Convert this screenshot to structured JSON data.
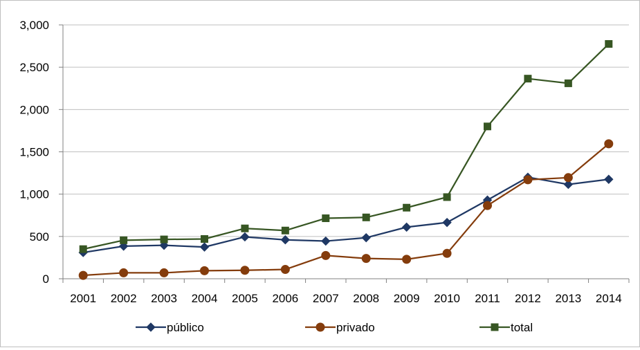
{
  "chart_data": {
    "type": "line",
    "title": "",
    "xlabel": "",
    "ylabel": "",
    "categories": [
      "2001",
      "2002",
      "2003",
      "2004",
      "2005",
      "2006",
      "2007",
      "2008",
      "2009",
      "2010",
      "2011",
      "2012",
      "2013",
      "2014"
    ],
    "ylim": [
      0,
      3000
    ],
    "yticks": [
      0,
      500,
      1000,
      1500,
      2000,
      2500,
      3000
    ],
    "ytick_labels": [
      "0",
      "500",
      "1,000",
      "1,500",
      "2,000",
      "2,500",
      "3,000"
    ],
    "grid": "horizontal",
    "legend_position": "bottom",
    "series": [
      {
        "name": "público",
        "color": "#1f3864",
        "marker": "diamond",
        "values": [
          310,
          385,
          395,
          375,
          495,
          460,
          445,
          485,
          610,
          665,
          930,
          1200,
          1115,
          1175
        ]
      },
      {
        "name": "privado",
        "color": "#843c0c",
        "marker": "circle",
        "values": [
          40,
          70,
          70,
          95,
          100,
          110,
          275,
          240,
          230,
          300,
          865,
          1170,
          1195,
          1595
        ]
      },
      {
        "name": "total",
        "color": "#375623",
        "marker": "square",
        "values": [
          350,
          455,
          465,
          470,
          595,
          570,
          715,
          725,
          840,
          965,
          1800,
          2365,
          2310,
          2775
        ]
      }
    ]
  }
}
